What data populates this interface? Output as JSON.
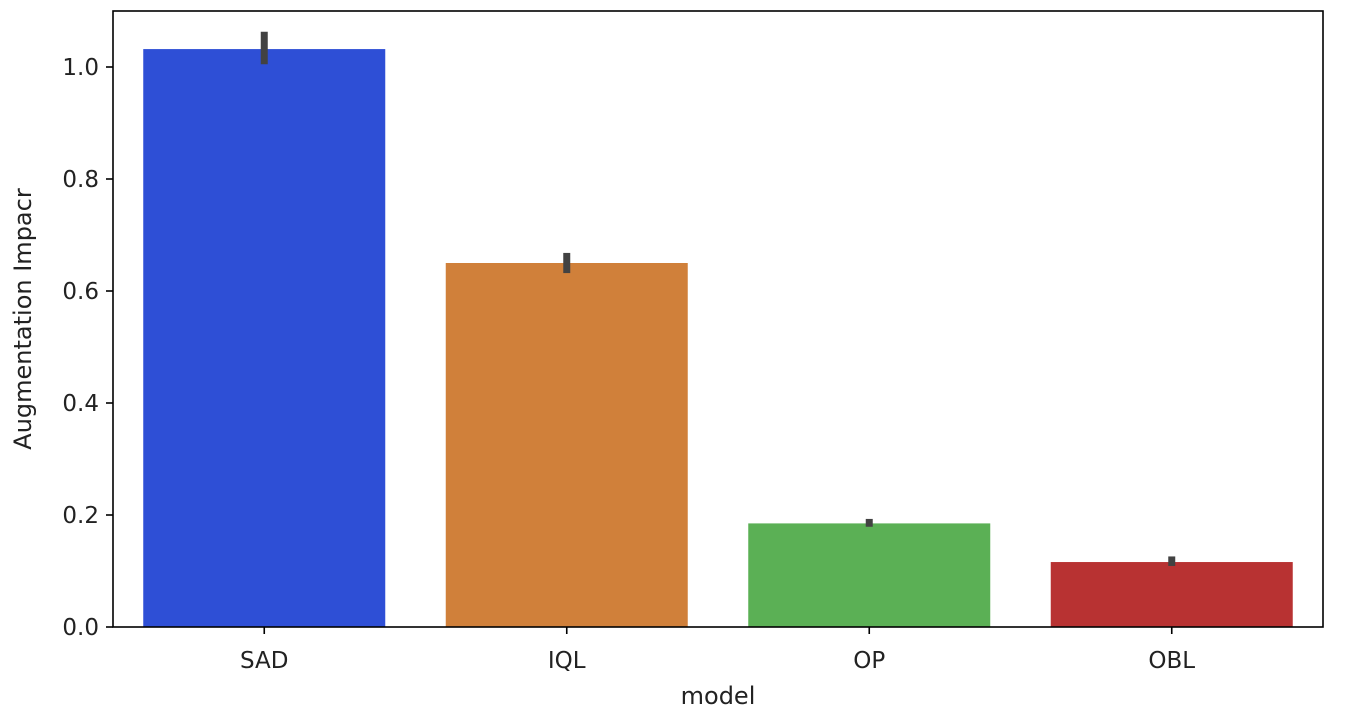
{
  "chart_data": {
    "type": "bar",
    "title": "",
    "xlabel": "model",
    "ylabel": "Augmentation Impacr",
    "categories": [
      "SAD",
      "IQL",
      "OP",
      "OBL"
    ],
    "values": [
      1.032,
      0.65,
      0.185,
      0.116
    ],
    "error_bars": [
      [
        1.005,
        1.063
      ],
      [
        0.632,
        0.668
      ],
      [
        0.179,
        0.193
      ],
      [
        0.109,
        0.126
      ]
    ],
    "colors": [
      "#2e4fd6",
      "#d0803a",
      "#5bb055",
      "#b83232"
    ],
    "ylim": [
      0,
      1.1
    ],
    "yticks": [
      "0.0",
      "0.2",
      "0.4",
      "0.6",
      "0.8",
      "1.0"
    ],
    "grid": false,
    "legend": "none"
  }
}
